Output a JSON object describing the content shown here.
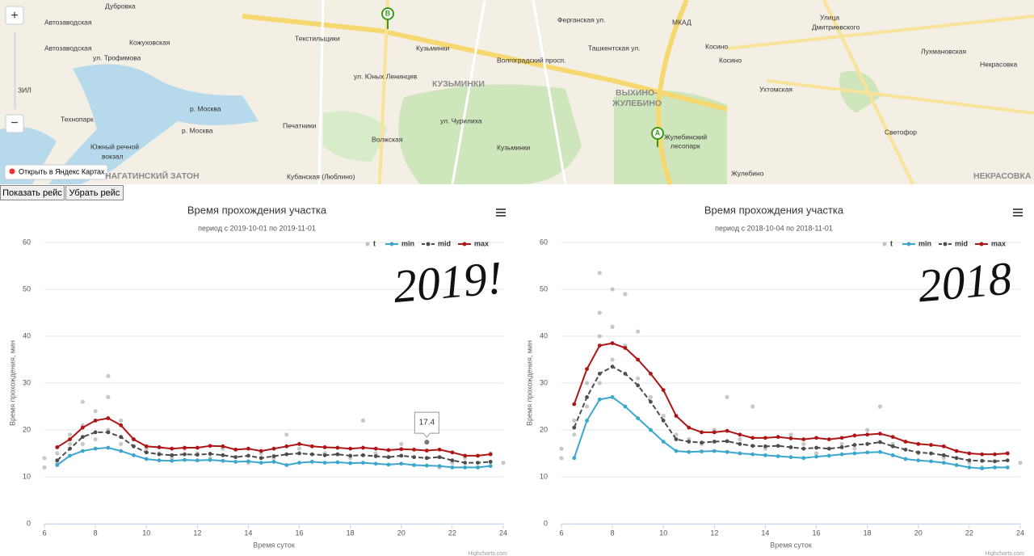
{
  "map": {
    "labels": [
      "Дубровка",
      "Автозаводская",
      "Автозаводская",
      "Кожуховская",
      "ул. Трофимова",
      "ЗИЛ",
      "Технопарк",
      "р. Москва",
      "р. Москва",
      "Южный речной",
      "вокзал",
      "НАГАТИНСКИЙ ЗАТОН",
      "Текстильщики",
      "Кузьминки",
      "КУЗЬМИНКИ",
      "Волгоградский просп.",
      "ул. Юных Ленинцев",
      "Печатники",
      "Волжская",
      "Кузьминки",
      "ул. Чурилиха",
      "ВЫХИНО-",
      "ЖУЛЕБИНО",
      "Жулебинский",
      "лесопарк",
      "Косино",
      "Косино",
      "Ухтомская",
      "Лухмановская",
      "Некрасовка",
      "Светофор",
      "Жулебино",
      "Кубанская (Люблино)",
      "Улица",
      "Дмитриевского",
      "НЕКРАСОВКА",
      "Ферганская ул.",
      "Ташкентская ул.",
      "МКАД"
    ],
    "markers": [
      "A",
      "B"
    ],
    "zoom_in": "+",
    "zoom_out": "−",
    "open_link": "Открыть в Яндекс Картах"
  },
  "buttons": [
    "Показать рейс",
    "Убрать рейс"
  ],
  "chart_data": [
    {
      "type": "line",
      "title": "Время прохождения участка",
      "subtitle": "период с 2019-10-01 по 2019-11-01",
      "y_label": "Время прохождения, мин",
      "x_label": "Время суток",
      "credits": "Highcharts.com",
      "annotation": "2019!",
      "xlim": [
        6,
        24
      ],
      "ylim": [
        0,
        60
      ],
      "xticks": [
        6,
        8,
        10,
        12,
        14,
        16,
        18,
        20,
        22,
        24
      ],
      "yticks": [
        0,
        10,
        20,
        30,
        40,
        50,
        60
      ],
      "grid": true,
      "x": [
        6.5,
        7,
        7.5,
        8,
        8.5,
        9,
        9.5,
        10,
        10.5,
        11,
        11.5,
        12,
        12.5,
        13,
        13.5,
        14,
        14.5,
        15,
        15.5,
        16,
        16.5,
        17,
        17.5,
        18,
        18.5,
        19,
        19.5,
        20,
        20.5,
        21,
        21.5,
        22,
        22.5,
        23,
        23.5
      ],
      "series": [
        {
          "name": "t",
          "type": "scatter",
          "color": "#9a9a9a",
          "x": [
            6,
            6,
            6.5,
            6.5,
            7,
            7,
            7.5,
            7.5,
            7.5,
            8,
            8,
            8.5,
            8.5,
            8.5,
            9,
            9,
            9.5,
            10,
            10.5,
            11,
            11.5,
            12,
            12.5,
            13,
            14,
            14.5,
            15,
            15.5,
            16,
            17,
            18,
            18.5,
            19,
            20,
            21,
            21.5,
            22,
            22.5,
            23,
            23.5,
            24
          ],
          "values": [
            12,
            14,
            15,
            13,
            17,
            19,
            21,
            26,
            17,
            24,
            18,
            27,
            31.5,
            20,
            22,
            17,
            18,
            16,
            15,
            14,
            16,
            15,
            14,
            16,
            13,
            15,
            14,
            19,
            16,
            15,
            14,
            22,
            15,
            17,
            14,
            12,
            13,
            14,
            12,
            15,
            13
          ]
        },
        {
          "name": "min",
          "color": "#3ba7cf",
          "values": [
            12.5,
            14.5,
            15.5,
            16,
            16.2,
            15.5,
            14.6,
            13.8,
            13.5,
            13.4,
            13.6,
            13.5,
            13.6,
            13.4,
            13.2,
            13.3,
            13,
            13.2,
            12.5,
            13,
            13.2,
            13,
            13.1,
            12.9,
            13,
            12.8,
            12.6,
            12.8,
            12.5,
            12.4,
            12.3,
            12,
            12,
            12,
            12.3
          ]
        },
        {
          "name": "mid",
          "color": "#4d4d4d",
          "dashed": true,
          "values": [
            13.5,
            16,
            18.5,
            19.5,
            19.5,
            18.5,
            16.5,
            15.2,
            14.8,
            14.6,
            14.8,
            14.7,
            14.9,
            14.6,
            14.2,
            14.5,
            14,
            14.4,
            14.8,
            15,
            14.8,
            14.6,
            14.8,
            14.5,
            14.6,
            14.4,
            14.2,
            14.5,
            14.2,
            14,
            14.2,
            13.5,
            13,
            13,
            13.2
          ]
        },
        {
          "name": "max",
          "color": "#b01515",
          "values": [
            16.3,
            18,
            20.5,
            22,
            22.5,
            21,
            18,
            16.5,
            16.3,
            16,
            16.2,
            16.2,
            16.6,
            16.5,
            15.8,
            16,
            15.5,
            16,
            16.5,
            17,
            16.5,
            16.3,
            16.2,
            16,
            16.2,
            16,
            15.7,
            15.9,
            15.8,
            15.6,
            15.8,
            15.2,
            14.5,
            14.5,
            14.8
          ]
        }
      ],
      "tooltip": {
        "x": 21,
        "value": 17.4
      }
    },
    {
      "type": "line",
      "title": "Время прохождения участка",
      "subtitle": "период с 2018-10-04 по 2018-11-01",
      "y_label": "Время прохождения, мин",
      "x_label": "Время суток",
      "credits": "Highcharts.com",
      "annotation": "2018",
      "xlim": [
        6,
        24
      ],
      "ylim": [
        0,
        60
      ],
      "xticks": [
        6,
        8,
        10,
        12,
        14,
        16,
        18,
        20,
        22,
        24
      ],
      "yticks": [
        0,
        10,
        20,
        30,
        40,
        50,
        60
      ],
      "grid": true,
      "x": [
        6.5,
        7,
        7.5,
        8,
        8.5,
        9,
        9.5,
        10,
        10.5,
        11,
        11.5,
        12,
        12.5,
        13,
        13.5,
        14,
        14.5,
        15,
        15.5,
        16,
        16.5,
        17,
        17.5,
        18,
        18.5,
        19,
        19.5,
        20,
        20.5,
        21,
        21.5,
        22,
        22.5,
        23,
        23.5
      ],
      "series": [
        {
          "name": "t",
          "type": "scatter",
          "color": "#9a9a9a",
          "x": [
            6,
            6,
            6.5,
            6.5,
            7,
            7,
            7.5,
            7.5,
            7.5,
            7.5,
            8,
            8,
            8,
            8.5,
            8.5,
            9,
            9,
            9.5,
            10,
            10.5,
            11,
            11.5,
            12,
            12.5,
            13,
            13.5,
            14,
            15,
            15.5,
            16,
            17,
            17.5,
            18,
            18.5,
            19,
            20,
            21,
            22,
            22.5,
            23.5,
            24
          ],
          "values": [
            14,
            16,
            22,
            19,
            30,
            25,
            53.5,
            45,
            40,
            30,
            50,
            42,
            35,
            49,
            38,
            41,
            31,
            27,
            23,
            19,
            18,
            17,
            20,
            27,
            18,
            25,
            16,
            19,
            17,
            15,
            17,
            16,
            20,
            25,
            17,
            15,
            14,
            13,
            12,
            15,
            13
          ]
        },
        {
          "name": "min",
          "color": "#3ba7cf",
          "values": [
            14,
            22,
            26.5,
            27,
            25,
            22.5,
            20,
            17.5,
            15.5,
            15.3,
            15.4,
            15.5,
            15.3,
            15,
            14.8,
            14.6,
            14.4,
            14.2,
            14,
            14.3,
            14.5,
            14.8,
            15,
            15.2,
            15.3,
            14.6,
            13.8,
            13.5,
            13.3,
            13,
            12.5,
            12,
            11.8,
            12,
            12
          ]
        },
        {
          "name": "mid",
          "color": "#4d4d4d",
          "dashed": true,
          "values": [
            20.5,
            27,
            32,
            33.5,
            32,
            29.5,
            26,
            22,
            18,
            17.5,
            17.3,
            17.5,
            17.6,
            17,
            16.6,
            16.5,
            16.6,
            16.3,
            16,
            16.2,
            16,
            16.3,
            16.8,
            17,
            17.4,
            16.5,
            15.8,
            15.2,
            15,
            14.6,
            14,
            13.5,
            13.4,
            13.3,
            13.5
          ]
        },
        {
          "name": "max",
          "color": "#b01515",
          "values": [
            25.5,
            33,
            38,
            38.5,
            37.5,
            35,
            32,
            28.5,
            23,
            20.5,
            19.5,
            19.5,
            19.8,
            19,
            18.3,
            18.3,
            18.5,
            18.2,
            18,
            18.3,
            18,
            18.3,
            18.8,
            19,
            19.2,
            18.5,
            17.5,
            17,
            16.8,
            16.5,
            15.5,
            15,
            14.8,
            14.8,
            15
          ]
        }
      ]
    }
  ]
}
